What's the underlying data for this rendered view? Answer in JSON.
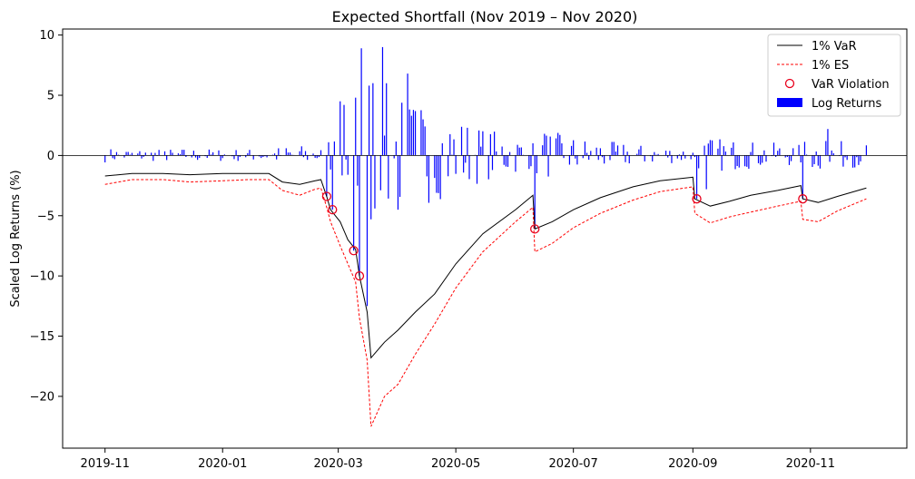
{
  "chart_data": {
    "type": "bar+line",
    "title": "Expected Shortfall (Nov 2019 – Nov 2020)",
    "ylabel": "Scaled Log Returns (%)",
    "xlabel": "",
    "ylim": [
      -24.3,
      10.5
    ],
    "xlim": [
      "2019-10-10",
      "2020-12-21"
    ],
    "x_ticks": [
      "2019-11",
      "2020-01",
      "2020-03",
      "2020-05",
      "2020-07",
      "2020-09",
      "2020-11"
    ],
    "y_ticks": [
      -20,
      -15,
      -10,
      -5,
      0,
      5,
      10
    ],
    "zero_line": true,
    "legend": {
      "placement": "top-right",
      "entries": [
        "1% VaR",
        "1% ES",
        "VaR Violation",
        "Log Returns"
      ]
    },
    "colors": {
      "var": "#000000",
      "es": "#ff0000",
      "violation": "#e8001c",
      "returns": "#0000ff"
    },
    "series": [
      {
        "name": "1% VaR",
        "style": "solid",
        "points": [
          [
            "2019-11-01",
            -1.7
          ],
          [
            "2019-11-15",
            -1.5
          ],
          [
            "2019-12-01",
            -1.5
          ],
          [
            "2019-12-15",
            -1.6
          ],
          [
            "2020-01-01",
            -1.5
          ],
          [
            "2020-01-15",
            -1.5
          ],
          [
            "2020-01-25",
            -1.5
          ],
          [
            "2020-02-01",
            -2.2
          ],
          [
            "2020-02-10",
            -2.4
          ],
          [
            "2020-02-18",
            -2.1
          ],
          [
            "2020-02-21",
            -2.0
          ],
          [
            "2020-02-24",
            -3.4
          ],
          [
            "2020-02-26",
            -4.5
          ],
          [
            "2020-03-02",
            -5.5
          ],
          [
            "2020-03-06",
            -7.0
          ],
          [
            "2020-03-10",
            -7.8
          ],
          [
            "2020-03-12",
            -10.0
          ],
          [
            "2020-03-16",
            -13.0
          ],
          [
            "2020-03-18",
            -16.8
          ],
          [
            "2020-03-25",
            -15.5
          ],
          [
            "2020-04-01",
            -14.5
          ],
          [
            "2020-04-10",
            -13.0
          ],
          [
            "2020-04-20",
            -11.5
          ],
          [
            "2020-05-01",
            -9.0
          ],
          [
            "2020-05-15",
            -6.5
          ],
          [
            "2020-06-01",
            -4.5
          ],
          [
            "2020-06-10",
            -3.3
          ],
          [
            "2020-06-11",
            -6.1
          ],
          [
            "2020-06-20",
            -5.5
          ],
          [
            "2020-07-01",
            -4.5
          ],
          [
            "2020-07-15",
            -3.5
          ],
          [
            "2020-08-01",
            -2.6
          ],
          [
            "2020-08-15",
            -2.1
          ],
          [
            "2020-09-01",
            -1.8
          ],
          [
            "2020-09-02",
            -3.6
          ],
          [
            "2020-09-10",
            -4.2
          ],
          [
            "2020-09-20",
            -3.8
          ],
          [
            "2020-10-01",
            -3.3
          ],
          [
            "2020-10-15",
            -2.9
          ],
          [
            "2020-10-27",
            -2.5
          ],
          [
            "2020-10-28",
            -3.6
          ],
          [
            "2020-11-05",
            -3.9
          ],
          [
            "2020-11-15",
            -3.4
          ],
          [
            "2020-11-30",
            -2.7
          ]
        ]
      },
      {
        "name": "1% ES",
        "style": "dashed",
        "points": [
          [
            "2019-11-01",
            -2.4
          ],
          [
            "2019-11-15",
            -2.0
          ],
          [
            "2019-12-01",
            -2.0
          ],
          [
            "2019-12-15",
            -2.2
          ],
          [
            "2020-01-01",
            -2.1
          ],
          [
            "2020-01-15",
            -2.0
          ],
          [
            "2020-01-25",
            -2.0
          ],
          [
            "2020-02-01",
            -2.9
          ],
          [
            "2020-02-10",
            -3.3
          ],
          [
            "2020-02-18",
            -2.8
          ],
          [
            "2020-02-21",
            -2.7
          ],
          [
            "2020-02-24",
            -4.3
          ],
          [
            "2020-02-26",
            -5.5
          ],
          [
            "2020-03-02",
            -7.5
          ],
          [
            "2020-03-06",
            -9.0
          ],
          [
            "2020-03-10",
            -10.5
          ],
          [
            "2020-03-12",
            -13.5
          ],
          [
            "2020-03-16",
            -17.0
          ],
          [
            "2020-03-18",
            -22.5
          ],
          [
            "2020-03-25",
            -20.0
          ],
          [
            "2020-04-01",
            -19.0
          ],
          [
            "2020-04-10",
            -16.5
          ],
          [
            "2020-04-20",
            -14.0
          ],
          [
            "2020-05-01",
            -11.0
          ],
          [
            "2020-05-15",
            -8.0
          ],
          [
            "2020-06-01",
            -5.5
          ],
          [
            "2020-06-10",
            -4.3
          ],
          [
            "2020-06-11",
            -8.0
          ],
          [
            "2020-06-20",
            -7.3
          ],
          [
            "2020-07-01",
            -6.0
          ],
          [
            "2020-07-15",
            -4.8
          ],
          [
            "2020-08-01",
            -3.7
          ],
          [
            "2020-08-15",
            -3.0
          ],
          [
            "2020-09-01",
            -2.6
          ],
          [
            "2020-09-02",
            -4.8
          ],
          [
            "2020-09-10",
            -5.6
          ],
          [
            "2020-09-20",
            -5.1
          ],
          [
            "2020-10-01",
            -4.7
          ],
          [
            "2020-10-15",
            -4.2
          ],
          [
            "2020-10-27",
            -3.8
          ],
          [
            "2020-10-28",
            -5.3
          ],
          [
            "2020-11-05",
            -5.5
          ],
          [
            "2020-11-15",
            -4.6
          ],
          [
            "2020-11-30",
            -3.6
          ]
        ]
      }
    ],
    "violations": [
      [
        "2020-02-24",
        -3.4
      ],
      [
        "2020-02-27",
        -4.5
      ],
      [
        "2020-03-09",
        -7.9
      ],
      [
        "2020-03-12",
        -10.0
      ],
      [
        "2020-06-11",
        -6.1
      ],
      [
        "2020-09-03",
        -3.6
      ],
      [
        "2020-10-28",
        -3.6
      ]
    ],
    "returns_notable": [
      [
        "2020-02-24",
        -3.4
      ],
      [
        "2020-02-27",
        -4.5
      ],
      [
        "2020-03-02",
        4.5
      ],
      [
        "2020-03-04",
        4.2
      ],
      [
        "2020-03-09",
        -7.9
      ],
      [
        "2020-03-10",
        4.8
      ],
      [
        "2020-03-12",
        -10.0
      ],
      [
        "2020-03-13",
        8.9
      ],
      [
        "2020-03-16",
        -12.5
      ],
      [
        "2020-03-17",
        5.8
      ],
      [
        "2020-03-18",
        -5.3
      ],
      [
        "2020-03-20",
        -4.4
      ],
      [
        "2020-03-24",
        9.0
      ],
      [
        "2020-03-26",
        6.0
      ],
      [
        "2020-04-01",
        -4.5
      ],
      [
        "2020-04-06",
        6.8
      ],
      [
        "2020-04-08",
        3.3
      ],
      [
        "2020-04-14",
        3.0
      ],
      [
        "2020-04-21",
        -3.1
      ],
      [
        "2020-06-11",
        -6.1
      ],
      [
        "2020-06-16",
        1.8
      ],
      [
        "2020-09-03",
        -3.6
      ],
      [
        "2020-09-08",
        -2.8
      ],
      [
        "2020-10-28",
        -3.6
      ],
      [
        "2020-11-09",
        1.2
      ],
      [
        "2020-11-10",
        2.2
      ]
    ],
    "returns_note": "daily log returns, small bars between notable ones"
  }
}
